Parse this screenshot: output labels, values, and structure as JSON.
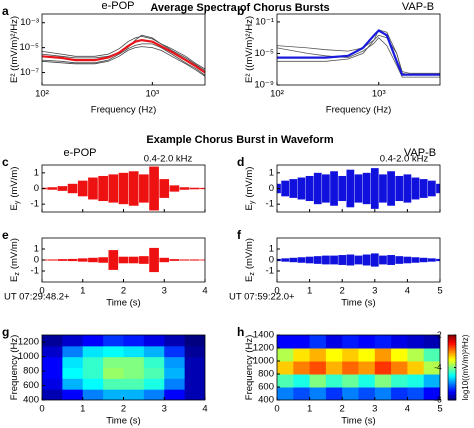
{
  "figure": {
    "title_top": "Average Spectra of Chorus Bursts",
    "title_middle": "Example Chorus Burst in Waveform"
  },
  "chart_data": [
    {
      "panel": "a",
      "type": "line",
      "instrument": "e-POP",
      "instrument_color": "#e8141a",
      "xlog": true,
      "ylog": true,
      "xlim": [
        100,
        3000
      ],
      "ylim": [
        1e-08,
        0.005
      ],
      "xticks": [
        {
          "value": 100,
          "label": "10²"
        },
        {
          "value": 1000,
          "label": "10³"
        }
      ],
      "yticks": [
        {
          "value": 0.001,
          "label": "10⁻³"
        },
        {
          "value": 1e-05,
          "label": "10⁻⁵"
        },
        {
          "value": 1e-07,
          "label": "10⁻⁷"
        }
      ],
      "xlabel": "Frequency (Hz)",
      "ylabel": "E² ((mV/m)²/Hz)",
      "x": [
        100,
        150,
        200,
        300,
        400,
        500,
        600,
        700,
        800,
        1000,
        1200,
        1500,
        2000,
        2500,
        3000
      ],
      "series": [
        {
          "color": "#444444",
          "values": [
            5e-06,
            3e-06,
            2e-06,
            2e-06,
            3e-06,
            8e-06,
            3e-05,
            6e-05,
            8e-05,
            5e-05,
            2e-05,
            6e-06,
            1.5e-06,
            4e-07,
            1.5e-07
          ]
        },
        {
          "color": "#444444",
          "values": [
            1e-06,
            8e-07,
            6e-07,
            6e-07,
            1e-06,
            3e-06,
            8e-06,
            1.5e-05,
            2e-05,
            2e-05,
            1e-05,
            3e-06,
            6e-07,
            2e-07,
            6e-08
          ]
        },
        {
          "color": "#444444",
          "values": [
            3e-06,
            2e-06,
            1.5e-06,
            1.5e-06,
            2e-06,
            4e-06,
            1e-05,
            4e-05,
            0.0001,
            6e-05,
            2e-05,
            8e-06,
            2e-06,
            5e-07,
            2e-07
          ]
        },
        {
          "color": "#444444",
          "values": [
            8e-07,
            6e-07,
            5e-07,
            5e-07,
            8e-07,
            2e-06,
            6e-06,
            1e-05,
            1.2e-05,
            1e-05,
            6e-06,
            2e-06,
            5e-07,
            1.5e-07,
            5e-08
          ]
        },
        {
          "color": "#e8141a",
          "values": [
            2e-06,
            1.5e-06,
            1e-06,
            1e-06,
            1.6e-06,
            4e-06,
            1.3e-05,
            3e-05,
            4e-05,
            3e-05,
            1.3e-05,
            4.5e-06,
            1e-06,
            3e-07,
            1e-07
          ]
        }
      ]
    },
    {
      "panel": "b",
      "type": "line",
      "instrument": "VAP-B",
      "instrument_color": "#1a1adc",
      "xlog": true,
      "ylog": true,
      "xlim": [
        100,
        4000
      ],
      "ylim": [
        1e-09,
        1
      ],
      "xticks": [
        {
          "value": 100,
          "label": "10²"
        },
        {
          "value": 1000,
          "label": "10³"
        }
      ],
      "yticks": [
        {
          "value": 0.1,
          "label": "10⁻¹"
        },
        {
          "value": 1e-05,
          "label": "10⁻⁵"
        },
        {
          "value": 1e-09,
          "label": "10⁻⁹"
        }
      ],
      "xlabel": "Frequency (Hz)",
      "ylabel": "E² ((mV/m)²/Hz)",
      "x": [
        100,
        200,
        300,
        500,
        700,
        900,
        1000,
        1200,
        1500,
        1700,
        2000,
        3000,
        4000
      ],
      "series": [
        {
          "color": "#555555",
          "values": [
            0.0001,
            5e-05,
            3e-05,
            2e-05,
            5e-05,
            0.0005,
            0.002,
            0.001,
            1e-05,
            3e-08,
            2e-08,
            2e-08,
            2e-08
          ]
        },
        {
          "color": "#555555",
          "values": [
            1e-06,
            1e-06,
            1e-06,
            2e-06,
            1e-05,
            0.0005,
            0.01,
            0.005,
            1e-05,
            5e-08,
            3e-08,
            3e-08,
            3e-08
          ]
        },
        {
          "color": "#555555",
          "values": [
            5e-05,
            1e-05,
            5e-06,
            3e-06,
            2e-05,
            0.0002,
            0.001,
            0.0001,
            3e-07,
            1e-08,
            1e-08,
            1e-08,
            1e-08
          ]
        },
        {
          "color": "#1a1adc",
          "values": [
            3e-06,
            3e-06,
            3e-06,
            5e-06,
            5e-05,
            0.002,
            0.008,
            0.002,
            1e-06,
            2e-08,
            2e-08,
            2e-08,
            2e-08
          ]
        }
      ]
    },
    {
      "panel": "c",
      "type": "waveform",
      "instrument": "e-POP",
      "instrument_color": "#e8141a",
      "band": "0.4-2.0 kHz",
      "color": "#ee1111",
      "xlim": [
        0,
        4
      ],
      "ylim": [
        -1.5,
        1.5
      ],
      "xticks": [
        0,
        1,
        2,
        3,
        4
      ],
      "yticks": [
        1,
        0,
        -1
      ],
      "show_xtick_labels": false,
      "ylabel": "(mV/m)",
      "ylabel_var": "E",
      "ylabel_sub": "y",
      "x": [
        0,
        0.25,
        0.5,
        0.75,
        1,
        1.25,
        1.5,
        1.75,
        2,
        2.25,
        2.5,
        2.75,
        3,
        3.25,
        3.5,
        3.75,
        4
      ],
      "values": [
        0.05,
        0.08,
        0.15,
        0.3,
        0.5,
        0.7,
        0.8,
        0.9,
        1.0,
        1.1,
        0.9,
        1.4,
        0.6,
        0.2,
        0.08,
        0.05,
        0.04
      ]
    },
    {
      "panel": "d",
      "type": "waveform",
      "instrument": "VAP-B",
      "instrument_color": "#1a1adc",
      "band": "0.4-2.0 kHz",
      "color": "#1111dd",
      "xlim": [
        0,
        5
      ],
      "ylim": [
        -1.5,
        1.5
      ],
      "xticks": [
        0,
        1,
        2,
        3,
        4,
        5
      ],
      "yticks": [
        1,
        0,
        -1
      ],
      "show_xtick_labels": false,
      "ylabel": "(mV/m)",
      "ylabel_var": "E",
      "ylabel_sub": "y",
      "x": [
        0,
        0.25,
        0.5,
        0.75,
        1,
        1.25,
        1.5,
        1.75,
        2,
        2.25,
        2.5,
        2.75,
        3,
        3.25,
        3.5,
        3.75,
        4,
        4.25,
        4.5,
        4.75,
        5
      ],
      "values": [
        0.3,
        0.5,
        0.6,
        0.7,
        0.8,
        1.0,
        0.9,
        1.1,
        0.8,
        1.2,
        0.9,
        1.0,
        1.3,
        0.9,
        1.1,
        0.8,
        0.9,
        0.7,
        0.6,
        0.5,
        0.3
      ]
    },
    {
      "panel": "e",
      "type": "waveform",
      "color": "#ee1111",
      "time_origin": "UT 07:29:48.2+",
      "xlim": [
        0,
        4
      ],
      "ylim": [
        -2,
        2
      ],
      "xticks": [
        0,
        1,
        2,
        3,
        4
      ],
      "yticks": [
        1,
        0,
        -1
      ],
      "xlabel": "Time (s)",
      "ylabel": "(mV/m)",
      "ylabel_var": "E",
      "ylabel_sub": "z",
      "x": [
        0,
        0.25,
        0.5,
        0.75,
        1,
        1.25,
        1.5,
        1.75,
        2,
        2.25,
        2.5,
        2.75,
        3,
        3.25,
        3.5,
        3.75,
        4
      ],
      "values": [
        0.05,
        0.05,
        0.08,
        0.1,
        0.15,
        0.2,
        0.25,
        0.9,
        0.3,
        0.3,
        0.35,
        1.1,
        0.2,
        0.08,
        0.05,
        0.05,
        0.04
      ]
    },
    {
      "panel": "f",
      "type": "waveform",
      "color": "#1111dd",
      "time_origin": "UT 07:59:22.0+",
      "xlim": [
        0,
        5
      ],
      "ylim": [
        -2,
        2
      ],
      "xticks": [
        0,
        1,
        2,
        3,
        4,
        5
      ],
      "yticks": [
        1,
        0,
        -1
      ],
      "xlabel": "Time (s)",
      "ylabel": "(mV/m)",
      "ylabel_var": "E",
      "ylabel_sub": "z",
      "x": [
        0,
        0.25,
        0.5,
        0.75,
        1,
        1.25,
        1.5,
        1.75,
        2,
        2.25,
        2.5,
        2.75,
        3,
        3.25,
        3.5,
        3.75,
        4,
        4.25,
        4.5,
        4.75,
        5
      ],
      "values": [
        0.1,
        0.15,
        0.2,
        0.25,
        0.3,
        0.35,
        0.4,
        0.4,
        0.45,
        0.5,
        0.4,
        0.5,
        0.6,
        0.4,
        0.45,
        0.35,
        0.3,
        0.25,
        0.2,
        0.15,
        0.1
      ]
    },
    {
      "panel": "g",
      "type": "heatmap",
      "clim": [
        -6,
        -2
      ],
      "xlim": [
        0,
        4
      ],
      "ylim": [
        400,
        1300
      ],
      "xticks": [
        0,
        1,
        2,
        3,
        4
      ],
      "yticks": [
        400,
        600,
        800,
        1000,
        1200
      ],
      "xlabel": "Time (s)",
      "ylabel": "Frequency (Hz)",
      "x_edges": [
        0,
        0.5,
        1,
        1.5,
        2,
        2.5,
        3,
        3.5,
        4
      ],
      "y_edges": [
        400,
        550,
        700,
        850,
        1000,
        1150,
        1300
      ],
      "z": [
        [
          -5.8,
          -5.5,
          -5,
          -4.8,
          -4.8,
          -5,
          -5.5,
          -5.8
        ],
        [
          -5.6,
          -4.8,
          -4.5,
          -4.2,
          -4.2,
          -4.4,
          -5,
          -5.8
        ],
        [
          -5.5,
          -4.5,
          -4.3,
          -3.9,
          -4,
          -4.2,
          -4.8,
          -5.8
        ],
        [
          -5.5,
          -4.6,
          -4.3,
          -4,
          -4,
          -4.3,
          -4.9,
          -5.8
        ],
        [
          -5.7,
          -5,
          -4.6,
          -4.5,
          -4.6,
          -4.8,
          -5.3,
          -5.9
        ],
        [
          -5.9,
          -5.7,
          -5.5,
          -5.3,
          -5.4,
          -5.6,
          -5.8,
          -6
        ]
      ]
    },
    {
      "panel": "h",
      "type": "heatmap",
      "clim": [
        -6,
        -2
      ],
      "cticks": [
        -2,
        -4,
        -6
      ],
      "clabel": "log10((mV/m)²/Hz)",
      "xlim": [
        0,
        5
      ],
      "ylim": [
        400,
        1400
      ],
      "xticks": [
        0,
        1,
        2,
        3,
        4,
        5
      ],
      "yticks": [
        400,
        600,
        800,
        1000,
        1200,
        1400
      ],
      "xlabel": "Time (s)",
      "ylabel": "Frequency (Hz)",
      "x_edges": [
        0,
        0.5,
        1,
        1.5,
        2,
        2.5,
        3,
        3.5,
        4,
        4.5,
        5
      ],
      "y_edges": [
        400,
        600,
        800,
        1000,
        1200,
        1400
      ],
      "z": [
        [
          -5,
          -5.2,
          -5,
          -5.3,
          -5,
          -5.2,
          -5,
          -5.3,
          -5.2,
          -5.5
        ],
        [
          -4.2,
          -4.4,
          -4,
          -4.3,
          -4.1,
          -4.4,
          -4,
          -4.3,
          -4.4,
          -4.8
        ],
        [
          -3.3,
          -3,
          -2.8,
          -3.2,
          -2.9,
          -3.1,
          -2.7,
          -3,
          -3.3,
          -3.8
        ],
        [
          -3.8,
          -3.4,
          -3.2,
          -3.5,
          -3.3,
          -3.5,
          -3.1,
          -3.5,
          -3.8,
          -4.2
        ],
        [
          -5.5,
          -5.5,
          -5.3,
          -5.6,
          -5.4,
          -5.5,
          -5.4,
          -5.6,
          -5.7,
          -5.8
        ]
      ]
    }
  ]
}
